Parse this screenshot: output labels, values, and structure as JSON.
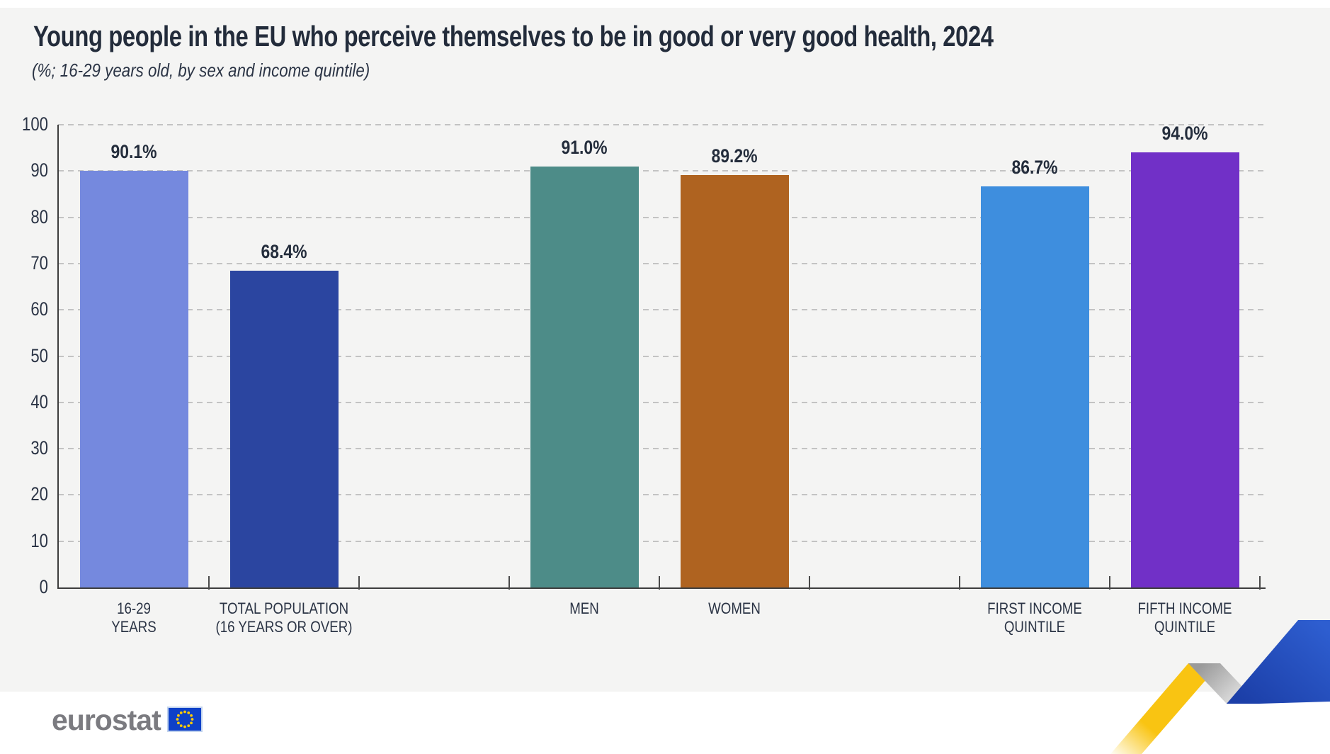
{
  "chart_data": {
    "type": "bar",
    "title": "Young people in the EU who perceive themselves to be in good or very good health, 2024",
    "subtitle": "(%; 16-29 years old, by sex and income quintile)",
    "categories": [
      [
        "16-29",
        "YEARS"
      ],
      [
        "TOTAL POPULATION",
        "(16 YEARS OR OVER)"
      ],
      [
        "MEN"
      ],
      [
        "WOMEN"
      ],
      [
        "FIRST INCOME",
        "QUINTILE"
      ],
      [
        "FIFTH INCOME",
        "QUINTILE"
      ]
    ],
    "values": [
      90.1,
      68.4,
      91.0,
      89.2,
      86.7,
      94.0
    ],
    "value_labels": [
      "90.1%",
      "68.4%",
      "91.0%",
      "89.2%",
      "86.7%",
      "94.0%"
    ],
    "bar_colors": [
      "#7589DE",
      "#2B45A0",
      "#4D8C88",
      "#AF6320",
      "#3E8EDE",
      "#7130C7"
    ],
    "ylim": [
      0,
      100
    ],
    "ytick_step": 10,
    "ytick_labels": [
      "0",
      "10",
      "20",
      "30",
      "40",
      "50",
      "60",
      "70",
      "80",
      "90",
      "100"
    ],
    "grid": "horizontal dashed",
    "legend": "none"
  },
  "footer": {
    "brand": "eurostat"
  },
  "colors": {
    "background_gray": "#F4F4F3",
    "title_text": "#232C3B",
    "axis_text": "#2B3445",
    "flag_blue": "#0E41C8",
    "flag_star_yellow": "#FFCC00",
    "zigzag_yellow": "#F9C412",
    "zigzag_gray": "#ADADAD",
    "zigzag_blue": "#2E5ED0"
  }
}
